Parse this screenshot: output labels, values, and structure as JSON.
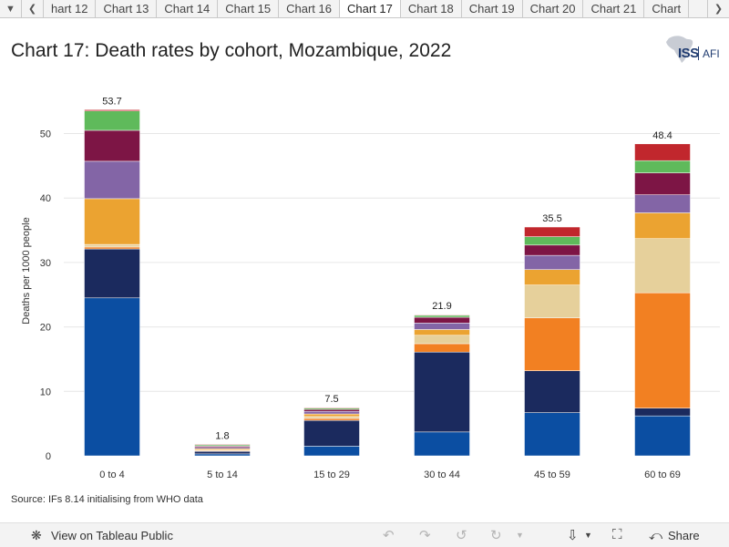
{
  "tabs": {
    "items": [
      "hart 12",
      "Chart 13",
      "Chart 14",
      "Chart 15",
      "Chart 16",
      "Chart 17",
      "Chart 18",
      "Chart 19",
      "Chart 20",
      "Chart 21",
      "Chart"
    ],
    "active_index": 5
  },
  "title": "Chart 17: Death rates by cohort, Mozambique, 2022",
  "logo": {
    "text": "ISS",
    "suffix": "AFI"
  },
  "source": "Source: IFs 8.14 initialising from WHO data",
  "footer": {
    "view_label": "View on Tableau Public",
    "share_label": "Share"
  },
  "chart_data": {
    "type": "bar",
    "stacked": true,
    "title": "Chart 17: Death rates by cohort, Mozambique, 2022",
    "xlabel": "",
    "ylabel": "Deaths per 1000 people",
    "ylim": [
      0,
      55
    ],
    "yticks": [
      0,
      10,
      20,
      30,
      40,
      50
    ],
    "grid": true,
    "categories": [
      "0 to 4",
      "5 to 14",
      "15 to 29",
      "30 to 44",
      "45 to 59",
      "60 to 69"
    ],
    "totals": [
      "53.7",
      "1.8",
      "7.5",
      "21.9",
      "35.5",
      "48.4"
    ],
    "series": [
      {
        "color": "#0b4ea2",
        "values": [
          24.5,
          0.3,
          1.5,
          3.7,
          6.7,
          6.2
        ]
      },
      {
        "color": "#1b2a5e",
        "values": [
          7.6,
          0.4,
          4.0,
          12.4,
          6.5,
          1.2
        ]
      },
      {
        "color": "#f28022",
        "values": [
          0.3,
          0.1,
          0.3,
          1.3,
          8.2,
          17.9
        ]
      },
      {
        "color": "#e6d09b",
        "values": [
          0.4,
          0.1,
          0.3,
          1.3,
          5.1,
          8.4
        ]
      },
      {
        "color": "#eba331",
        "values": [
          7.1,
          0.2,
          0.4,
          0.9,
          2.4,
          4.0
        ]
      },
      {
        "color": "#8365a6",
        "values": [
          5.8,
          0.2,
          0.4,
          1.0,
          2.2,
          2.8
        ]
      },
      {
        "color": "#7d1545",
        "values": [
          4.8,
          0.2,
          0.3,
          0.9,
          1.6,
          3.4
        ]
      },
      {
        "color": "#5fba5b",
        "values": [
          3.0,
          0.2,
          0.2,
          0.3,
          1.3,
          1.9
        ]
      },
      {
        "color": "#c1272d",
        "values": [
          0.2,
          0.1,
          0.1,
          0.1,
          1.5,
          2.6
        ]
      }
    ]
  }
}
